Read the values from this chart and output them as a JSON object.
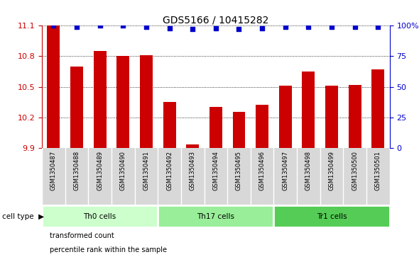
{
  "title": "GDS5166 / 10415282",
  "samples": [
    "GSM1350487",
    "GSM1350488",
    "GSM1350489",
    "GSM1350490",
    "GSM1350491",
    "GSM1350492",
    "GSM1350493",
    "GSM1350494",
    "GSM1350495",
    "GSM1350496",
    "GSM1350497",
    "GSM1350498",
    "GSM1350499",
    "GSM1350500",
    "GSM1350501"
  ],
  "bar_values": [
    11.1,
    10.7,
    10.85,
    10.8,
    10.81,
    10.35,
    9.93,
    10.3,
    10.25,
    10.32,
    10.51,
    10.65,
    10.51,
    10.52,
    10.67
  ],
  "percentile_values": [
    100,
    99,
    100,
    100,
    99,
    98,
    97,
    98,
    97,
    98,
    99,
    99,
    99,
    99,
    99
  ],
  "ylim_left": [
    9.9,
    11.1
  ],
  "ylim_right": [
    0,
    100
  ],
  "yticks_left": [
    9.9,
    10.2,
    10.5,
    10.8,
    11.1
  ],
  "yticks_right": [
    0,
    25,
    50,
    75,
    100
  ],
  "bar_color": "#cc0000",
  "dot_color": "#0000cc",
  "groups": [
    {
      "label": "Th0 cells",
      "start": 0,
      "end": 5,
      "color": "#ccffcc"
    },
    {
      "label": "Th17 cells",
      "start": 5,
      "end": 10,
      "color": "#99ee99"
    },
    {
      "label": "Tr1 cells",
      "start": 10,
      "end": 15,
      "color": "#55cc55"
    }
  ],
  "cell_type_label": "cell type",
  "legend_items": [
    {
      "label": "transformed count",
      "color": "#cc0000"
    },
    {
      "label": "percentile rank within the sample",
      "color": "#0000cc"
    }
  ],
  "tick_color_left": "#cc0000",
  "tick_color_right": "#0000cc",
  "sample_bg_color": "#d8d8d8",
  "title_fontsize": 10
}
